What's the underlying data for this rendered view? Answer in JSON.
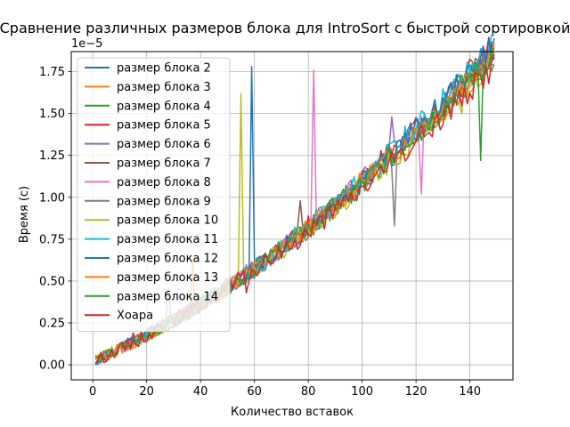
{
  "chart_data": {
    "type": "line",
    "title": "Сравнение различных размеров блока для IntroSort с быстрой сортировкой",
    "xlabel": "Количество вставок",
    "ylabel": "Время (с)",
    "y_offset_label": "1e−5",
    "xlim": [
      -8,
      156
    ],
    "ylim": [
      -0.09,
      1.87
    ],
    "x_ticks": [
      0,
      20,
      40,
      60,
      80,
      100,
      120,
      140
    ],
    "y_ticks": [
      0.0,
      0.25,
      0.5,
      0.75,
      1.0,
      1.25,
      1.5,
      1.75
    ],
    "y_tick_labels": [
      "0.00",
      "0.25",
      "0.50",
      "0.75",
      "1.00",
      "1.25",
      "1.50",
      "1.75"
    ],
    "grid": true,
    "legend_position": "upper left",
    "series": [
      {
        "name": "размер блока 2",
        "color": "#1f77b4",
        "seed": 2,
        "spikes": [
          [
            59,
            1.78
          ]
        ]
      },
      {
        "name": "размер блока 3",
        "color": "#ff7f0e",
        "seed": 3,
        "spikes": [
          [
            37,
            0.62
          ]
        ]
      },
      {
        "name": "размер блока 4",
        "color": "#2ca02c",
        "seed": 4,
        "spikes": []
      },
      {
        "name": "размер блока 5",
        "color": "#d62728",
        "seed": 5,
        "spikes": [
          [
            15,
            0.19
          ]
        ]
      },
      {
        "name": "размер блока 6",
        "color": "#9467bd",
        "seed": 6,
        "spikes": [
          [
            28,
            0.46
          ],
          [
            111,
            1.48
          ]
        ]
      },
      {
        "name": "размер блока 7",
        "color": "#8c564b",
        "seed": 7,
        "spikes": [
          [
            77,
            0.98
          ]
        ]
      },
      {
        "name": "размер блока 8",
        "color": "#e377c2",
        "seed": 8,
        "spikes": [
          [
            82,
            1.76
          ],
          [
            122,
            1.02
          ],
          [
            137,
            1.64
          ]
        ]
      },
      {
        "name": "размер блока 9",
        "color": "#7f7f7f",
        "seed": 9,
        "spikes": [
          [
            112,
            0.83
          ]
        ]
      },
      {
        "name": "размер блока 10",
        "color": "#bcbd22",
        "seed": 10,
        "spikes": [
          [
            55,
            1.62
          ],
          [
            136,
            1.56
          ],
          [
            137,
            1.5
          ]
        ]
      },
      {
        "name": "размер блока 11",
        "color": "#17becf",
        "seed": 11,
        "spikes": []
      },
      {
        "name": "размер блока 12",
        "color": "#1f77b4",
        "seed": 12,
        "spikes": []
      },
      {
        "name": "размер блока 13",
        "color": "#ff7f0e",
        "seed": 13,
        "spikes": []
      },
      {
        "name": "размер блока 14",
        "color": "#2ca02c",
        "seed": 14,
        "spikes": [
          [
            144,
            1.22
          ]
        ]
      },
      {
        "name": "Хоара",
        "color": "#d62728",
        "seed": 15,
        "spikes": [
          [
            57,
            0.43
          ]
        ]
      }
    ]
  }
}
